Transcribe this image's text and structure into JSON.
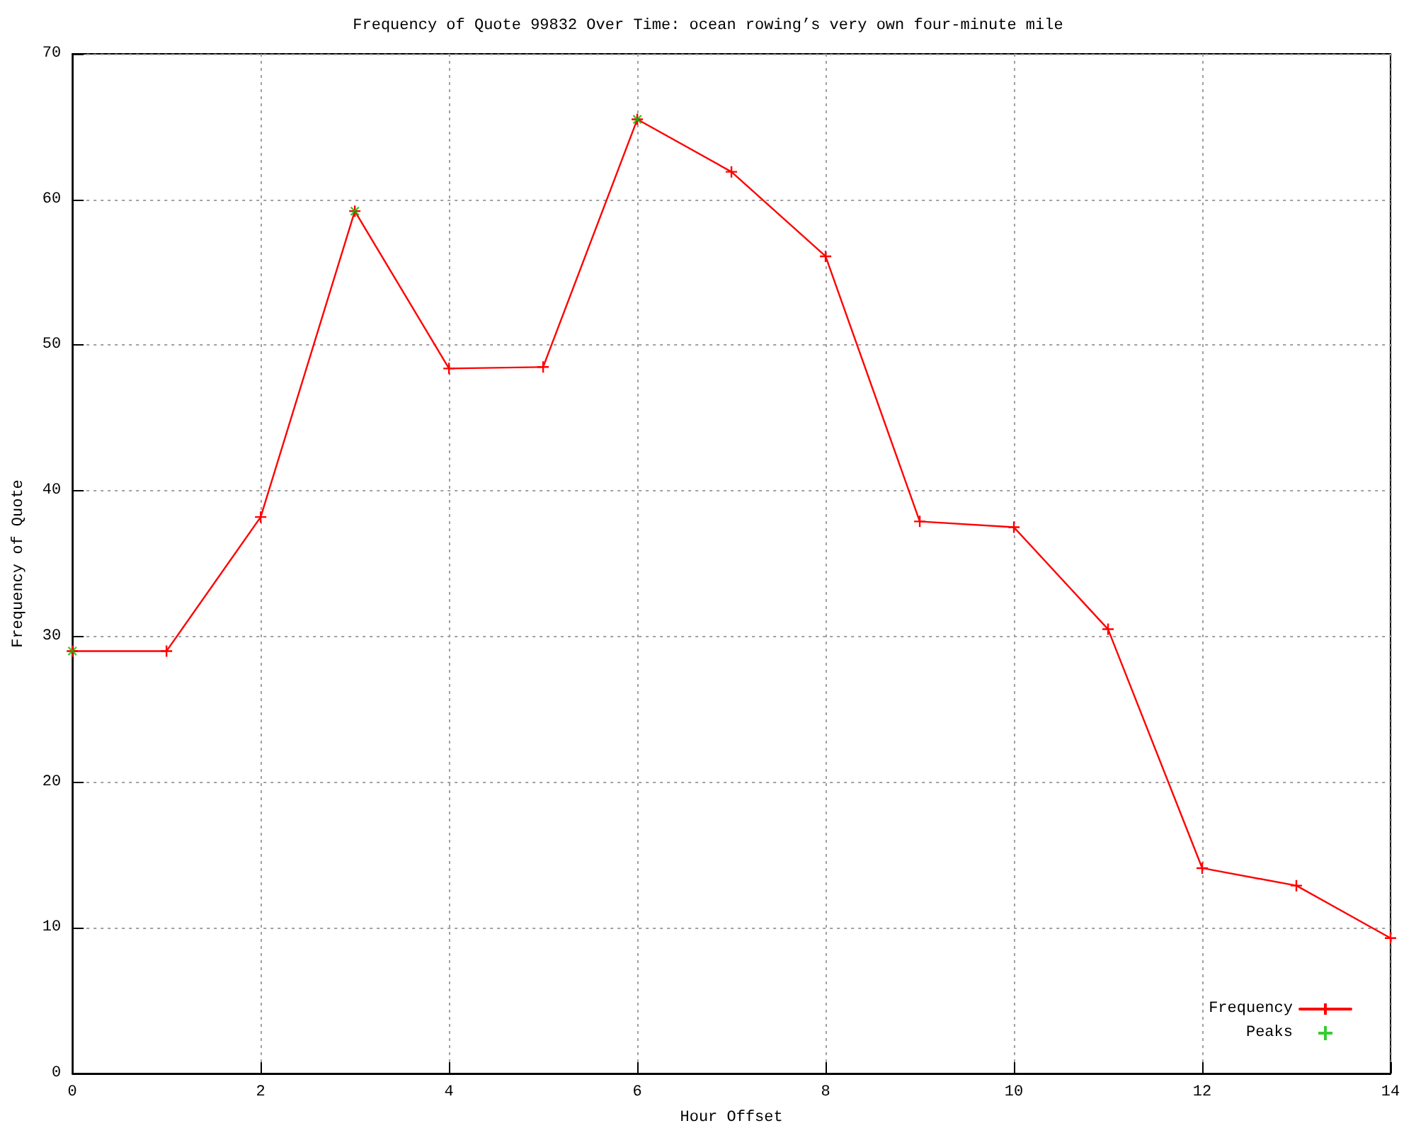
{
  "chart_data": {
    "type": "line",
    "title": "Frequency of Quote 99832 Over Time: ocean rowing’s very own four-minute mile",
    "xlabel": "Hour Offset",
    "ylabel": "Frequency of Quote",
    "x": [
      0,
      1,
      2,
      3,
      4,
      5,
      6,
      7,
      8,
      9,
      10,
      11,
      12,
      13,
      14
    ],
    "series": [
      {
        "name": "Frequency",
        "color": "#ff0000",
        "marker": "cross",
        "values": [
          29.0,
          29.0,
          38.2,
          59.2,
          48.4,
          48.5,
          65.5,
          61.9,
          56.1,
          37.9,
          37.5,
          30.5,
          14.1,
          12.9,
          9.3
        ]
      },
      {
        "name": "Peaks",
        "type": "scatter",
        "color": "#00c000",
        "marker": "cross",
        "x": [
          0,
          3,
          6
        ],
        "values": [
          29.0,
          59.2,
          65.5
        ]
      }
    ],
    "xlim": [
      0,
      14
    ],
    "xticks": [
      0,
      2,
      4,
      6,
      8,
      10,
      12,
      14
    ],
    "ylim": [
      0,
      70
    ],
    "yticks": [
      0,
      10,
      20,
      30,
      40,
      50,
      60,
      70
    ],
    "grid": true,
    "legend": "bottom right",
    "line_style": "solid"
  }
}
